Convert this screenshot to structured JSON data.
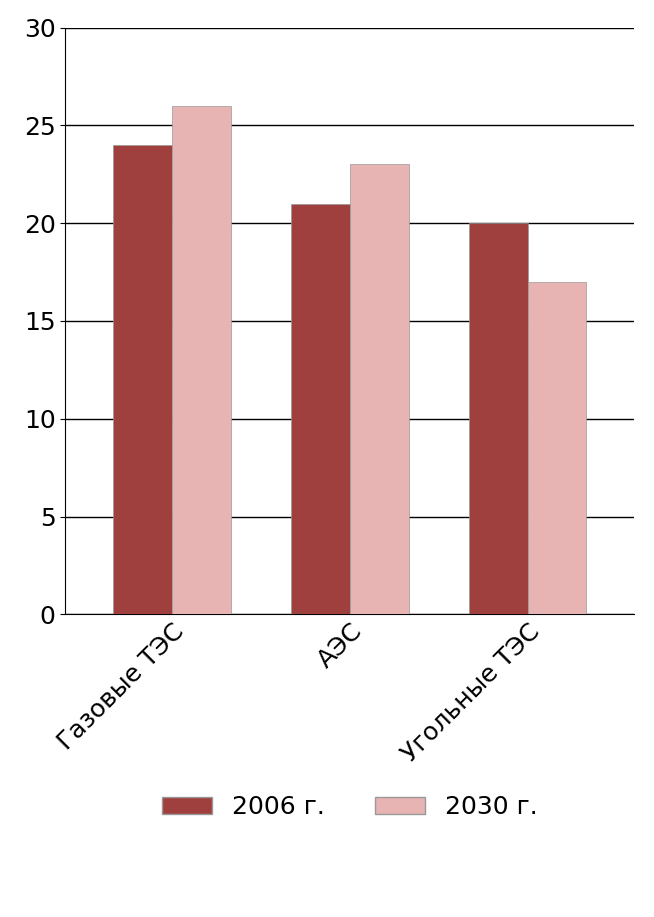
{
  "chart_data": {
    "type": "bar",
    "categories": [
      "Газовые ТЭС",
      "АЭС",
      "Угольные ТЭС"
    ],
    "series": [
      {
        "name": "2006 г.",
        "color": "#a0403e",
        "values": [
          24,
          21,
          20
        ]
      },
      {
        "name": "2030 г.",
        "color": "#e8b3b3",
        "values": [
          26,
          23,
          17
        ]
      }
    ],
    "ylim": [
      0,
      30
    ],
    "yticks": [
      0,
      5,
      10,
      15,
      20,
      25,
      30
    ],
    "grid": true,
    "legend": "bottom"
  }
}
